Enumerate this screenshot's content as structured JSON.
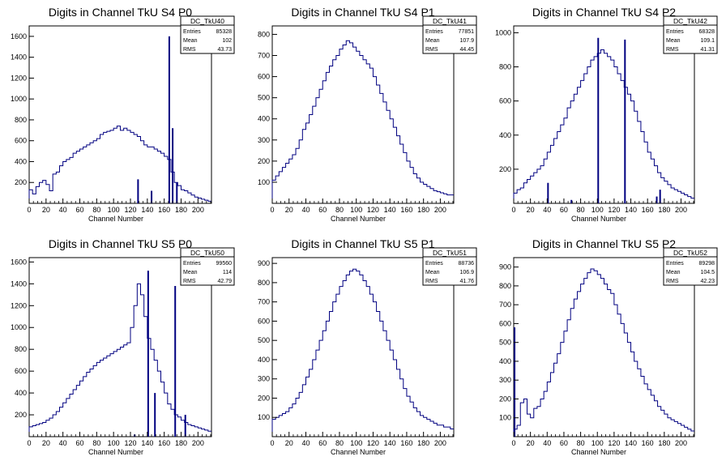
{
  "colors": {
    "hist": "#000080",
    "axis": "#000000",
    "stats_border": "#000000"
  },
  "chart_data": [
    {
      "type": "histogram",
      "title": "Digits in Channel TkU S4 P0",
      "xlabel": "Channel Number",
      "xlim": [
        0,
        216
      ],
      "ylim": [
        0,
        1700
      ],
      "xticks": [
        0,
        20,
        40,
        60,
        80,
        100,
        120,
        140,
        160,
        180,
        200
      ],
      "yticks": [
        200,
        400,
        600,
        800,
        1000,
        1200,
        1400,
        1600
      ],
      "stats": {
        "name": "DC_TkU40",
        "rows": [
          [
            "Entries",
            "85328"
          ],
          [
            "Mean",
            "102"
          ],
          [
            "RMS",
            "43.73"
          ]
        ]
      },
      "series": [
        {
          "x_start": 0,
          "bin_width": 4,
          "values": [
            130,
            90,
            160,
            200,
            220,
            180,
            120,
            280,
            300,
            360,
            400,
            420,
            440,
            480,
            500,
            520,
            540,
            560,
            580,
            600,
            620,
            660,
            680,
            690,
            700,
            720,
            740,
            700,
            720,
            700,
            680,
            660,
            640,
            600,
            560,
            540,
            540,
            520,
            500,
            480,
            450,
            420,
            300,
            200,
            170,
            130,
            120,
            100,
            80,
            60,
            50,
            40,
            30,
            20
          ]
        }
      ],
      "spikes": [
        [
          129,
          230
        ],
        [
          145,
          120
        ],
        [
          166,
          1600
        ],
        [
          170,
          720
        ],
        [
          175,
          200
        ]
      ]
    },
    {
      "type": "histogram",
      "title": "Digits in Channel TkU S4 P1",
      "xlabel": "Channel Number",
      "xlim": [
        0,
        216
      ],
      "ylim": [
        0,
        840
      ],
      "xticks": [
        0,
        20,
        40,
        60,
        80,
        100,
        120,
        140,
        160,
        180,
        200
      ],
      "yticks": [
        100,
        200,
        300,
        400,
        500,
        600,
        700,
        800
      ],
      "stats": {
        "name": "DC_TkU41",
        "rows": [
          [
            "Entries",
            "77851"
          ],
          [
            "Mean",
            "107.9"
          ],
          [
            "RMS",
            "44.45"
          ]
        ]
      },
      "series": [
        {
          "x_start": 0,
          "bin_width": 4,
          "values": [
            110,
            130,
            150,
            170,
            190,
            210,
            230,
            260,
            300,
            350,
            380,
            420,
            460,
            500,
            540,
            580,
            620,
            650,
            680,
            700,
            730,
            750,
            770,
            760,
            740,
            720,
            700,
            680,
            660,
            640,
            600,
            560,
            520,
            480,
            440,
            400,
            360,
            320,
            280,
            240,
            200,
            170,
            140,
            120,
            100,
            90,
            80,
            70,
            60,
            55,
            50,
            45,
            40,
            40
          ]
        }
      ],
      "spikes": [
        [
          49,
          0
        ],
        [
          53,
          0
        ],
        [
          57,
          0
        ],
        [
          61,
          0
        ],
        [
          65,
          0
        ],
        [
          69,
          0
        ],
        [
          73,
          0
        ]
      ]
    },
    {
      "type": "histogram",
      "title": "Digits in Channel TkU S4 P2",
      "xlabel": "Channel Number",
      "xlim": [
        0,
        216
      ],
      "ylim": [
        0,
        1040
      ],
      "xticks": [
        0,
        20,
        40,
        60,
        80,
        100,
        120,
        140,
        160,
        180,
        200
      ],
      "yticks": [
        200,
        400,
        600,
        800,
        1000
      ],
      "stats": {
        "name": "DC_TkU42",
        "rows": [
          [
            "Entries",
            "68328"
          ],
          [
            "Mean",
            "109.1"
          ],
          [
            "RMS",
            "41.31"
          ]
        ]
      },
      "series": [
        {
          "x_start": 0,
          "bin_width": 4,
          "values": [
            60,
            80,
            90,
            120,
            140,
            160,
            180,
            200,
            220,
            260,
            300,
            340,
            380,
            420,
            460,
            500,
            560,
            600,
            640,
            680,
            720,
            760,
            800,
            840,
            860,
            880,
            900,
            880,
            860,
            840,
            800,
            760,
            720,
            680,
            640,
            600,
            540,
            480,
            420,
            360,
            300,
            260,
            220,
            180,
            150,
            130,
            110,
            90,
            80,
            70,
            60,
            50,
            40,
            30
          ]
        }
      ],
      "spikes": [
        [
          41,
          120
        ],
        [
          69,
          20
        ],
        [
          101,
          970
        ],
        [
          133,
          960
        ],
        [
          171,
          40
        ],
        [
          175,
          80
        ]
      ]
    },
    {
      "type": "histogram",
      "title": "Digits in Channel TkU S5 P0",
      "xlabel": "Channel Number",
      "xlim": [
        0,
        216
      ],
      "ylim": [
        0,
        1640
      ],
      "xticks": [
        0,
        20,
        40,
        60,
        80,
        100,
        120,
        140,
        160,
        180,
        200
      ],
      "yticks": [
        200,
        400,
        600,
        800,
        1000,
        1200,
        1400,
        1600
      ],
      "stats": {
        "name": "DC_TkU50",
        "rows": [
          [
            "Entries",
            "99560"
          ],
          [
            "Mean",
            "114"
          ],
          [
            "RMS",
            "42.79"
          ]
        ]
      },
      "series": [
        {
          "x_start": 0,
          "bin_width": 4,
          "values": [
            90,
            100,
            110,
            120,
            130,
            150,
            170,
            200,
            230,
            270,
            310,
            350,
            390,
            430,
            470,
            510,
            550,
            590,
            620,
            650,
            680,
            700,
            720,
            740,
            760,
            780,
            800,
            820,
            840,
            860,
            1000,
            1200,
            1400,
            1300,
            1100,
            900,
            800,
            700,
            600,
            500,
            400,
            300,
            250,
            200,
            180,
            150,
            130,
            110,
            100,
            90,
            80,
            70,
            60,
            50
          ]
        }
      ],
      "spikes": [
        [
          125,
          20
        ],
        [
          141,
          1520
        ],
        [
          149,
          400
        ],
        [
          173,
          1380
        ],
        [
          185,
          200
        ]
      ]
    },
    {
      "type": "histogram",
      "title": "Digits in Channel TkU S5 P1",
      "xlabel": "Channel Number",
      "xlim": [
        0,
        216
      ],
      "ylim": [
        0,
        930
      ],
      "xticks": [
        0,
        20,
        40,
        60,
        80,
        100,
        120,
        140,
        160,
        180,
        200
      ],
      "yticks": [
        100,
        200,
        300,
        400,
        500,
        600,
        700,
        800,
        900
      ],
      "stats": {
        "name": "DC_TkU51",
        "rows": [
          [
            "Entries",
            "88736"
          ],
          [
            "Mean",
            "106.9"
          ],
          [
            "RMS",
            "41.76"
          ]
        ]
      },
      "series": [
        {
          "x_start": 0,
          "bin_width": 4,
          "values": [
            90,
            100,
            110,
            120,
            130,
            150,
            170,
            200,
            230,
            270,
            310,
            350,
            400,
            450,
            500,
            550,
            600,
            650,
            700,
            740,
            780,
            810,
            840,
            860,
            870,
            860,
            840,
            810,
            780,
            740,
            700,
            650,
            600,
            550,
            500,
            450,
            400,
            350,
            300,
            250,
            210,
            180,
            150,
            130,
            110,
            100,
            90,
            80,
            70,
            60,
            60,
            50,
            50,
            40
          ]
        }
      ],
      "spikes": []
    },
    {
      "type": "histogram",
      "title": "Digits in Channel TkU S5 P2",
      "xlabel": "Channel Number",
      "xlim": [
        0,
        216
      ],
      "ylim": [
        0,
        950
      ],
      "xticks": [
        0,
        20,
        40,
        60,
        80,
        100,
        120,
        140,
        160,
        180,
        200
      ],
      "yticks": [
        100,
        200,
        300,
        400,
        500,
        600,
        700,
        800,
        900
      ],
      "stats": {
        "name": "DC_TkU52",
        "rows": [
          [
            "Entries",
            "89298"
          ],
          [
            "Mean",
            "104.5"
          ],
          [
            "RMS",
            "42.23"
          ]
        ]
      },
      "series": [
        {
          "x_start": 0,
          "bin_width": 4,
          "values": [
            40,
            60,
            180,
            200,
            120,
            100,
            150,
            160,
            200,
            240,
            290,
            340,
            390,
            440,
            500,
            560,
            620,
            680,
            730,
            770,
            810,
            840,
            870,
            890,
            880,
            860,
            840,
            810,
            780,
            760,
            700,
            650,
            600,
            550,
            500,
            450,
            400,
            360,
            320,
            280,
            250,
            220,
            190,
            160,
            140,
            120,
            100,
            90,
            80,
            70,
            60,
            50,
            40,
            30
          ]
        }
      ],
      "spikes": [
        [
          1,
          580
        ],
        [
          140,
          0
        ]
      ]
    }
  ]
}
